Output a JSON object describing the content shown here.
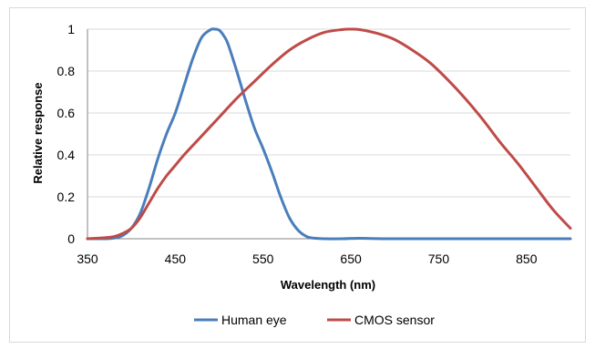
{
  "chart_data": {
    "type": "line",
    "xlabel": "Wavelength (nm)",
    "ylabel": "Relative response",
    "xlim": [
      350,
      900
    ],
    "ylim": [
      0,
      1
    ],
    "x_ticks": [
      "350",
      "450",
      "550",
      "650",
      "750",
      "850"
    ],
    "y_ticks": [
      "0",
      "0.2",
      "0.4",
      "0.6",
      "0.8",
      "1"
    ],
    "grid": "horizontal",
    "legend_position": "bottom",
    "series": [
      {
        "name": "Human eye",
        "color": "#4a7ebb",
        "x": [
          350,
          370,
          380,
          390,
          400,
          410,
          420,
          430,
          440,
          450,
          460,
          470,
          480,
          490,
          495,
          500,
          505,
          510,
          520,
          530,
          540,
          550,
          560,
          570,
          580,
          590,
          600,
          610,
          620,
          640,
          660,
          700,
          800,
          900
        ],
        "y": [
          0,
          0,
          0.003,
          0.015,
          0.05,
          0.12,
          0.24,
          0.38,
          0.5,
          0.6,
          0.73,
          0.86,
          0.96,
          0.997,
          1,
          0.995,
          0.97,
          0.93,
          0.8,
          0.66,
          0.53,
          0.43,
          0.32,
          0.2,
          0.1,
          0.04,
          0.01,
          0.002,
          0,
          0,
          0.002,
          0,
          0,
          0
        ]
      },
      {
        "name": "CMOS sensor",
        "color": "#be4b48",
        "x": [
          350,
          370,
          380,
          390,
          400,
          410,
          420,
          430,
          440,
          450,
          460,
          480,
          500,
          520,
          540,
          560,
          580,
          600,
          620,
          640,
          650,
          660,
          680,
          700,
          720,
          740,
          760,
          780,
          800,
          820,
          840,
          860,
          880,
          900
        ],
        "y": [
          0,
          0.005,
          0.01,
          0.025,
          0.05,
          0.1,
          0.17,
          0.24,
          0.3,
          0.35,
          0.4,
          0.49,
          0.58,
          0.67,
          0.75,
          0.83,
          0.9,
          0.95,
          0.985,
          0.998,
          1,
          0.998,
          0.98,
          0.95,
          0.9,
          0.84,
          0.76,
          0.67,
          0.57,
          0.46,
          0.36,
          0.25,
          0.14,
          0.05
        ]
      }
    ]
  }
}
